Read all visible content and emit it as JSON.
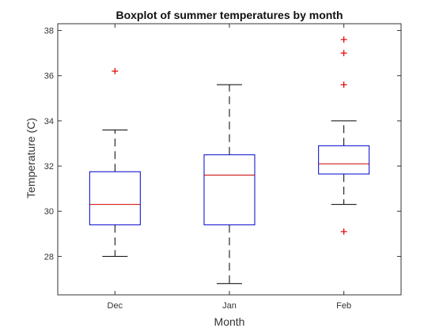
{
  "chart_data": {
    "type": "box",
    "title": "Boxplot of summer temperatures by month",
    "xlabel": "Month",
    "ylabel": "Temperature (C)",
    "ylim": [
      26.3,
      38.3
    ],
    "yticks": [
      28,
      30,
      32,
      34,
      36,
      38
    ],
    "grid": false,
    "colors": {
      "box": "#0000cc",
      "median": "#cc0000",
      "whisker": "#000000",
      "outlier": "#dd0000",
      "axis": "#333333"
    },
    "categories": [
      "Dec",
      "Jan",
      "Feb"
    ],
    "boxes": [
      {
        "category": "Dec",
        "whisker_low": 28.0,
        "q1": 29.4,
        "median": 30.3,
        "q3": 31.75,
        "whisker_high": 33.6,
        "outliers": [
          36.2
        ]
      },
      {
        "category": "Jan",
        "whisker_low": 26.8,
        "q1": 29.4,
        "median": 31.6,
        "q3": 32.5,
        "whisker_high": 35.6,
        "outliers": []
      },
      {
        "category": "Feb",
        "whisker_low": 30.3,
        "q1": 31.65,
        "median": 32.1,
        "q3": 32.9,
        "whisker_high": 34.0,
        "outliers": [
          29.1,
          35.6,
          37.0,
          37.6
        ]
      }
    ]
  }
}
